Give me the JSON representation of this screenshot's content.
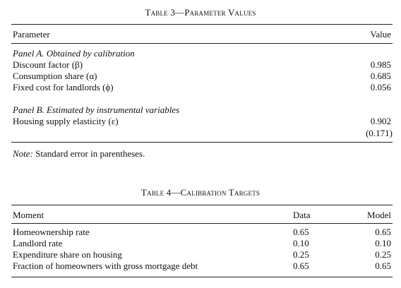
{
  "table3": {
    "title": "Table 3—Parameter Values",
    "col_parameter": "Parameter",
    "col_value": "Value",
    "panel_a": {
      "heading": "Panel A. Obtained by calibration",
      "rows": [
        {
          "label": "Discount factor (β)",
          "value": "0.985"
        },
        {
          "label": "Consumption share (α)",
          "value": "0.685"
        },
        {
          "label": "Fixed cost for landlords (ϕ)",
          "value": "0.056"
        }
      ]
    },
    "panel_b": {
      "heading": "Panel B. Estimated by instrumental variables",
      "rows": [
        {
          "label": "Housing supply elasticity (ε)",
          "value": "0.902",
          "se": "(0.171)"
        }
      ]
    },
    "note_label": "Note:",
    "note_text": "Standard error in parentheses."
  },
  "table4": {
    "title": "Table 4—Calibration Targets",
    "col_moment": "Moment",
    "col_data": "Data",
    "col_model": "Model",
    "rows": [
      {
        "label": "Homeownership rate",
        "data": "0.65",
        "model": "0.65"
      },
      {
        "label": "Landlord rate",
        "data": "0.10",
        "model": "0.10"
      },
      {
        "label": "Expenditure share on housing",
        "data": "0.25",
        "model": "0.25"
      },
      {
        "label": "Fraction of homeowners with gross mortgage debt",
        "data": "0.65",
        "model": "0.65"
      }
    ]
  }
}
